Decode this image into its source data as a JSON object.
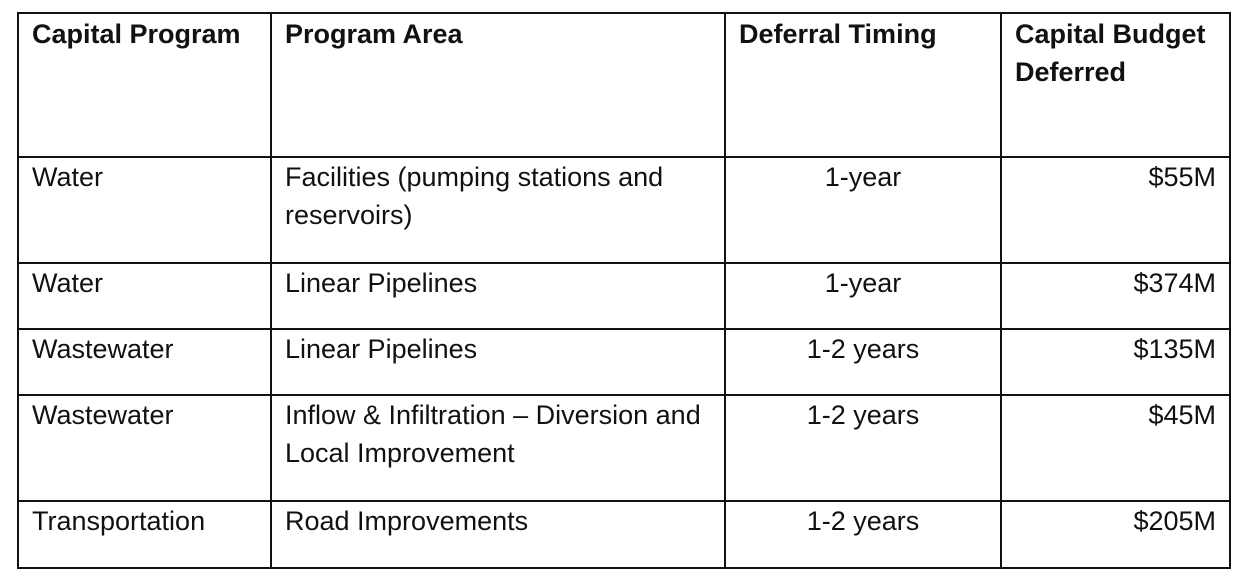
{
  "table": {
    "headers": [
      "Capital Program",
      "Program Area",
      "Deferral Timing",
      "Capital Budget Deferred"
    ],
    "rows": [
      [
        "Water",
        "Facilities (pumping stations and reservoirs)",
        "1-year",
        "$55M"
      ],
      [
        "Water",
        "Linear Pipelines",
        "1-year",
        "$374M"
      ],
      [
        "Wastewater",
        "Linear Pipelines",
        "1-2 years",
        "$135M"
      ],
      [
        "Wastewater",
        "Inflow & Infiltration – Diversion and Local Improvement",
        "1-2 years",
        "$45M"
      ],
      [
        "Transportation",
        "Road Improvements",
        "1-2 years",
        "$205M"
      ]
    ]
  }
}
